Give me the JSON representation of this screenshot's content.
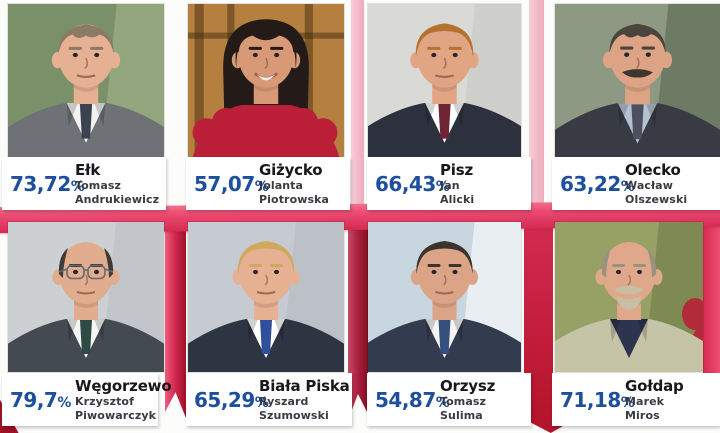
{
  "graphic_title": "mayoral-election-results",
  "percent_suffix": "%",
  "colors": {
    "percent_blue": "#1d4f9e",
    "town_black": "#17171c",
    "name_gray": "#3a3a40",
    "ribbon_pink": "#ee4d74",
    "ribbon_crimson": "#d42a52",
    "ribbon_dark": "#9e1126",
    "ribbon_light_pink": "#f5c3cf",
    "box_white": "#ffffff"
  },
  "cells": [
    {
      "town": "Ełk",
      "percent": "73,72",
      "first_name": "Tomasz",
      "last_name": "Andrukiewicz",
      "portrait": {
        "bg": "#7a9068",
        "bg2": "#93a67e",
        "hair": "#8a7a66",
        "skin": "#e6b093",
        "suit": "#6e7276",
        "shirt": "#f2f2f0",
        "tie": "#3c4250",
        "features": [
          "receding"
        ]
      }
    },
    {
      "town": "Giżycko",
      "percent": "57,07",
      "first_name": "Jolanta",
      "last_name": "Piotrowska",
      "portrait": {
        "bg": "#b5803f",
        "hair": "#241a18",
        "skin": "#d89a76",
        "boa": "#bb1f38",
        "features": [
          "window",
          "long-hair",
          "boa",
          "smile"
        ]
      }
    },
    {
      "town": "Pisz",
      "percent": "66,43",
      "first_name": "Jan",
      "last_name": "Alicki",
      "portrait": {
        "bg": "#d9dad6",
        "bg2": "#cfd0cc",
        "hair": "#b5722f",
        "skin": "#e2a584",
        "suit": "#2c313d",
        "shirt": "#ffffff",
        "tie": "#6e2433",
        "features": []
      }
    },
    {
      "town": "Olecko",
      "percent": "63,22",
      "first_name": "Wacław",
      "last_name": "Olszewski",
      "portrait": {
        "bg": "#8d9983",
        "bg2": "#6d7a64",
        "hair": "#4a443c",
        "mustache": "#3c362e",
        "skin": "#dca384",
        "suit": "#383b44",
        "shirt": "#b6c2d2",
        "tie": "#4c505e",
        "features": [
          "receding",
          "mustache"
        ]
      }
    },
    {
      "town": "Węgorzewo",
      "percent": "79,7",
      "first_name": "Krzysztof",
      "last_name": "Piwowarczyk",
      "portrait": {
        "bg": "#ccd0d3",
        "bg2": "#c2c6ca",
        "hair": "#3f3a36",
        "skin": "#e2ad8e",
        "suit": "#434a52",
        "shirt": "#f5f5f3",
        "tie": "#2e4a44",
        "features": [
          "bald",
          "glasses"
        ]
      }
    },
    {
      "town": "Biała Piska",
      "percent": "65,29",
      "first_name": "Ryszard",
      "last_name": "Szumowski",
      "portrait": {
        "bg": "#c6cbd1",
        "bg2": "#bcc1c8",
        "hair": "#cfa85c",
        "skin": "#e6b193",
        "suit": "#2e3542",
        "shirt": "#ffffff",
        "tie": "#2f4f9b",
        "features": []
      }
    },
    {
      "town": "Orzysz",
      "percent": "54,87",
      "first_name": "Tomasz",
      "last_name": "Sulima",
      "portrait": {
        "bg": "#c8d6e0",
        "bg2": "#e8eef2",
        "hair": "#3a332e",
        "skin": "#dba486",
        "suit": "#333c4e",
        "shirt": "#f4f4f2",
        "tie": "#35507e",
        "features": []
      }
    },
    {
      "town": "Gołdap",
      "percent": "71,18",
      "first_name": "Marek",
      "last_name": "Miros",
      "portrait": {
        "bg": "#97a065",
        "bg2": "#7f8a52",
        "hair": "#9a917f",
        "mustache": "#c7bfa4",
        "skin": "#dfa88b",
        "suit": "#c5c4a6",
        "shirt": "#2d3450",
        "features": [
          "seats",
          "bald",
          "mustache",
          "goatee"
        ]
      }
    }
  ]
}
